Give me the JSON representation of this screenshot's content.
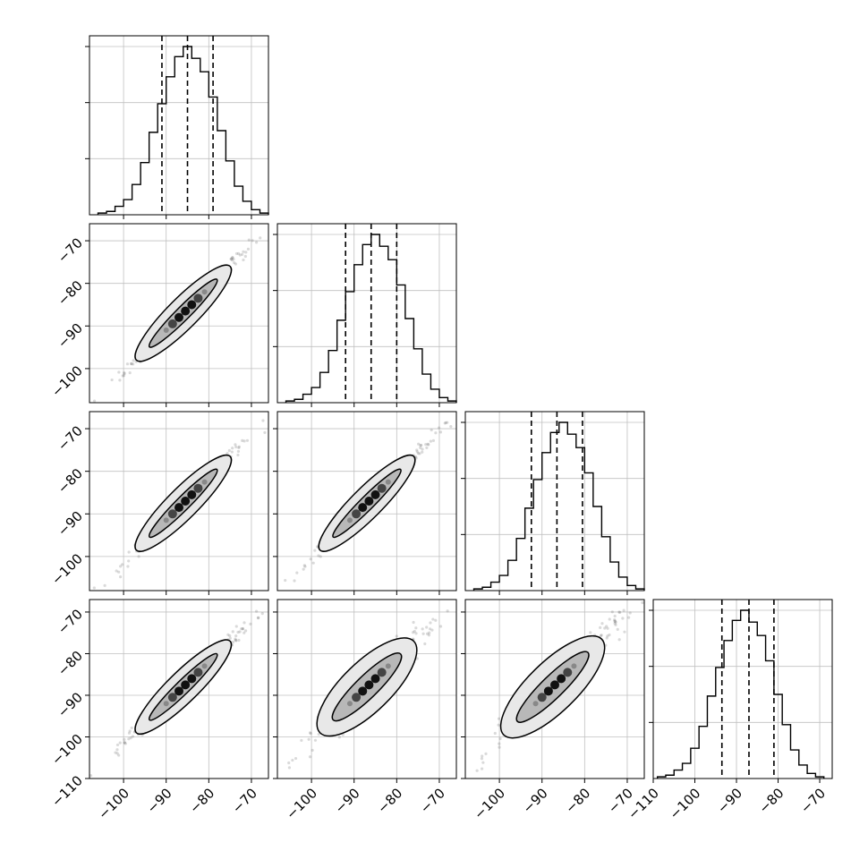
{
  "chart_data": {
    "type": "scatter",
    "title": "",
    "variant": "corner plot: 1D histograms on the diagonal, 2D density contours with scatter points below the diagonal",
    "grid": true,
    "colors": {
      "line": "#000000",
      "grid": "#c0c0c0",
      "points": "#555555"
    },
    "parameters": [
      {
        "index": 0,
        "range": [
          -108,
          -66
        ],
        "quantiles": [
          -91.0,
          -85.0,
          -79.0
        ]
      },
      {
        "index": 1,
        "range": [
          -108,
          -66
        ],
        "quantiles": [
          -92.0,
          -86.0,
          -80.0
        ]
      },
      {
        "index": 2,
        "range": [
          -108,
          -66
        ],
        "quantiles": [
          -92.5,
          -86.5,
          -80.5
        ]
      },
      {
        "index": 3,
        "range": [
          -110,
          -67
        ],
        "quantiles": [
          -93.5,
          -87.0,
          -81.0
        ]
      }
    ],
    "x_ticks": [
      {
        "values": [
          -100,
          -90,
          -80,
          -70
        ],
        "labels": [
          "−100",
          "−90",
          "−80",
          "−70"
        ]
      },
      {
        "values": [
          -100,
          -90,
          -80,
          -70
        ],
        "labels": [
          "−100",
          "−90",
          "−80",
          "−70"
        ]
      },
      {
        "values": [
          -100,
          -90,
          -80,
          -70
        ],
        "labels": [
          "−100",
          "−90",
          "−80",
          "−70"
        ]
      },
      {
        "values": [
          -110,
          -100,
          -90,
          -80,
          -70
        ],
        "labels": [
          "−110",
          "−100",
          "−90",
          "−80",
          "−70"
        ]
      }
    ],
    "y_ticks": [
      {
        "row": 1,
        "values": [
          -70,
          -80,
          -90,
          -100
        ],
        "labels": [
          "−70",
          "−80",
          "−90",
          "−100"
        ]
      },
      {
        "row": 2,
        "values": [
          -70,
          -80,
          -90,
          -100
        ],
        "labels": [
          "−70",
          "−80",
          "−90",
          "−100"
        ]
      },
      {
        "row": 3,
        "values": [
          -70,
          -80,
          -90,
          -100,
          -110
        ],
        "labels": [
          "−70",
          "−80",
          "−90",
          "−100",
          "−110"
        ]
      }
    ],
    "histograms": [
      {
        "param": 0,
        "bin_edges": [
          -106,
          -104,
          -102,
          -100,
          -98,
          -96,
          -94,
          -92,
          -90,
          -88,
          -86,
          -84,
          -82,
          -80,
          -78,
          -76,
          -74,
          -72,
          -70,
          -68,
          -66
        ],
        "counts": [
          1,
          2,
          5,
          9,
          18,
          31,
          49,
          66,
          82,
          94,
          100,
          93,
          85,
          70,
          50,
          32,
          17,
          8,
          3,
          1
        ]
      },
      {
        "param": 1,
        "bin_edges": [
          -106,
          -104,
          -102,
          -100,
          -98,
          -96,
          -94,
          -92,
          -90,
          -88,
          -86,
          -84,
          -82,
          -80,
          -78,
          -76,
          -74,
          -72,
          -70,
          -68,
          -66
        ],
        "counts": [
          1,
          2,
          5,
          9,
          18,
          31,
          49,
          66,
          82,
          94,
          100,
          93,
          85,
          70,
          50,
          32,
          17,
          8,
          3,
          1
        ]
      },
      {
        "param": 2,
        "bin_edges": [
          -106,
          -104,
          -102,
          -100,
          -98,
          -96,
          -94,
          -92,
          -90,
          -88,
          -86,
          -84,
          -82,
          -80,
          -78,
          -76,
          -74,
          -72,
          -70,
          -68,
          -66
        ],
        "counts": [
          1,
          2,
          5,
          9,
          18,
          31,
          49,
          66,
          82,
          94,
          100,
          93,
          85,
          70,
          50,
          32,
          17,
          8,
          3,
          1
        ]
      },
      {
        "param": 3,
        "bin_edges": [
          -109,
          -107,
          -105,
          -103,
          -101,
          -99,
          -97,
          -95,
          -93,
          -91,
          -89,
          -87,
          -85,
          -83,
          -81,
          -79,
          -77,
          -75,
          -73,
          -71,
          -69
        ],
        "counts": [
          1,
          2,
          5,
          9,
          18,
          31,
          49,
          66,
          82,
          94,
          100,
          93,
          85,
          70,
          50,
          32,
          17,
          8,
          3,
          1
        ]
      }
    ],
    "pairs": [
      {
        "x_param": 0,
        "y_param": 1,
        "center": [
          -85,
          -86
        ],
        "slope": 1.0,
        "contour_x": [
          -97,
          -75
        ],
        "contour_half_width": [
          1.6,
          3.6
        ]
      },
      {
        "x_param": 0,
        "y_param": 2,
        "center": [
          -85,
          -86.5
        ],
        "slope": 1.0,
        "contour_x": [
          -97,
          -75
        ],
        "contour_half_width": [
          1.6,
          3.6
        ]
      },
      {
        "x_param": 1,
        "y_param": 2,
        "center": [
          -86,
          -86.5
        ],
        "slope": 1.0,
        "contour_x": [
          -98,
          -76
        ],
        "contour_half_width": [
          1.6,
          3.6
        ]
      },
      {
        "x_param": 0,
        "y_param": 3,
        "center": [
          -85,
          -87
        ],
        "slope": 1.0,
        "contour_x": [
          -97,
          -75
        ],
        "contour_half_width": [
          1.6,
          3.6
        ]
      },
      {
        "x_param": 1,
        "y_param": 3,
        "center": [
          -86,
          -87
        ],
        "slope": 1.0,
        "contour_x": [
          -98,
          -76
        ],
        "contour_half_width": [
          2.6,
          5.8
        ]
      },
      {
        "x_param": 2,
        "y_param": 3,
        "center": [
          -86.5,
          -87
        ],
        "slope": 1.0,
        "contour_x": [
          -99,
          -76
        ],
        "contour_half_width": [
          2.6,
          5.8
        ]
      }
    ]
  }
}
